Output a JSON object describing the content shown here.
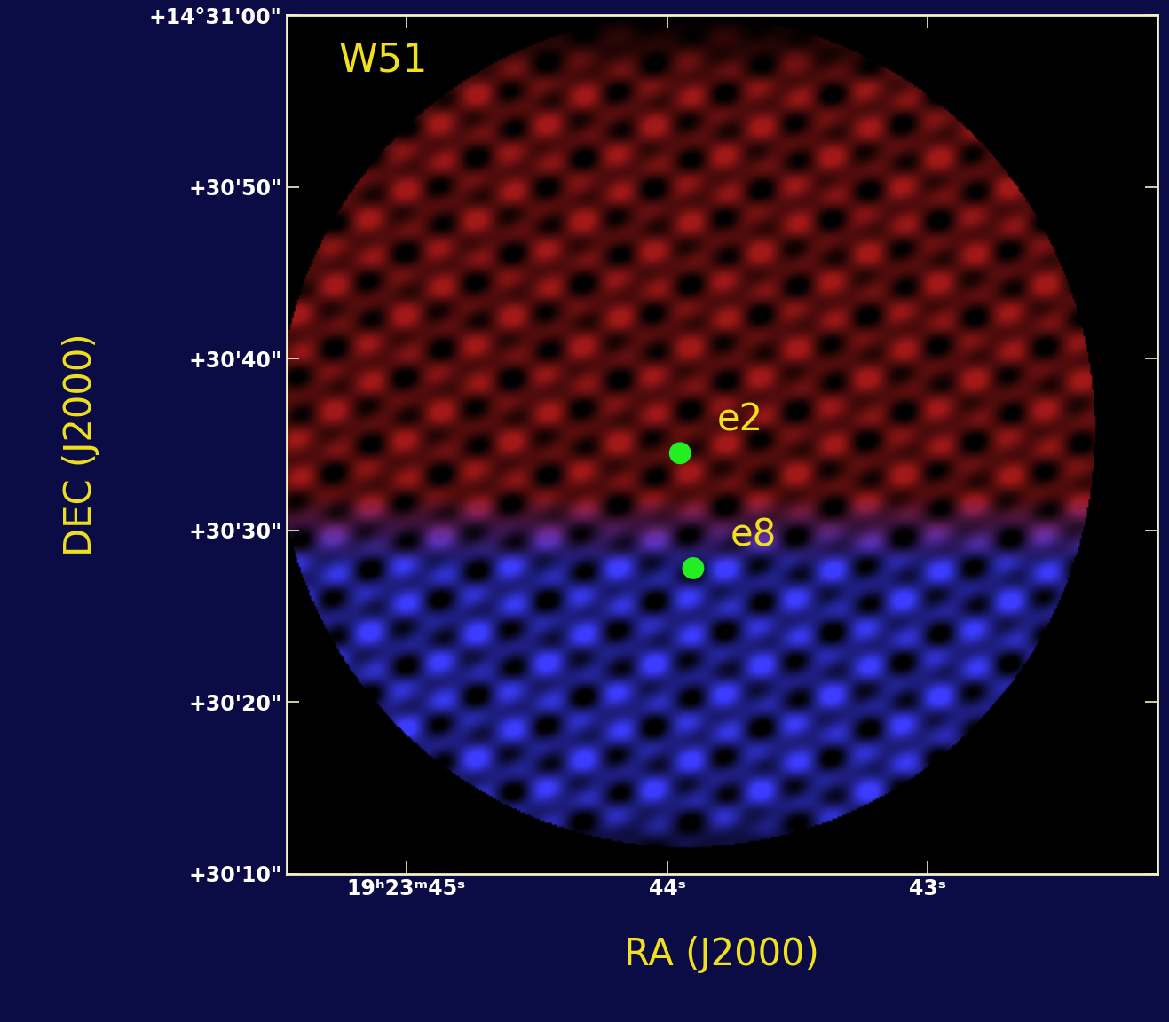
{
  "chart_data": {
    "type": "image",
    "title": "W51",
    "xlabel": "RA (J2000)",
    "ylabel": "DEC (J2000)",
    "xlim": [
      45.46,
      42.12
    ],
    "ylim": [
      10,
      60
    ],
    "xticks": [
      {
        "value": 45,
        "label": "19ʰ23ᵐ45ˢ"
      },
      {
        "value": 44,
        "label": "44ˢ"
      },
      {
        "value": 43,
        "label": "43ˢ"
      }
    ],
    "yticks": [
      {
        "value": 60,
        "label": "+14°31'00\""
      },
      {
        "value": 50,
        "label": "+30'50\""
      },
      {
        "value": 40,
        "label": "+30'40\""
      },
      {
        "value": 30,
        "label": "+30'30\""
      },
      {
        "value": 20,
        "label": "+30'20\""
      },
      {
        "value": 10,
        "label": "+30'10\""
      }
    ],
    "field": {
      "ra": 43.93,
      "dec": 35.8,
      "ra_radius": 1.57,
      "dec_radius": 24.3
    },
    "emission": [
      {
        "color": "#a01818",
        "dec": [
          28,
          60
        ]
      },
      {
        "color": "#3c3cff",
        "dec": [
          10,
          32
        ]
      }
    ],
    "series": [
      {
        "name": "e2",
        "color": "#22ee22",
        "x": [
          43.95
        ],
        "y": [
          34.5
        ],
        "marker": "circle"
      },
      {
        "name": "e8",
        "color": "#22ee22",
        "x": [
          43.9
        ],
        "y": [
          27.8
        ],
        "marker": "circle"
      }
    ]
  }
}
